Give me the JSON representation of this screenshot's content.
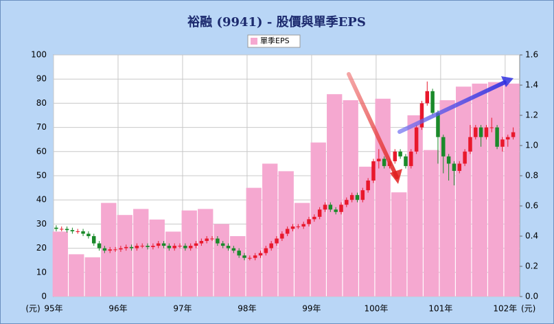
{
  "chart_data": {
    "type": "combo",
    "title": "裕融 (9941) - 股價與單季EPS",
    "y_label": "(元)",
    "y2_label": "(元)",
    "grid": true,
    "legend": "top",
    "xlim": [
      0,
      86.7
    ],
    "xticks": [
      {
        "value": 0,
        "label": "95年"
      },
      {
        "value": 12,
        "label": "96年"
      },
      {
        "value": 24,
        "label": "97年"
      },
      {
        "value": 36,
        "label": "98年"
      },
      {
        "value": 48,
        "label": "99年"
      },
      {
        "value": 60,
        "label": "100年"
      },
      {
        "value": 72,
        "label": "101年"
      },
      {
        "value": 84,
        "label": "102年"
      }
    ],
    "ylim": [
      0,
      100
    ],
    "yticks": [
      0,
      10,
      20,
      30,
      40,
      50,
      60,
      70,
      80,
      90,
      100
    ],
    "y2lim": [
      0,
      1.6
    ],
    "y2ticks": [
      {
        "value": 0,
        "label": "0.0"
      },
      0.2,
      0.4,
      0.6,
      0.8,
      {
        "value": 1,
        "label": "1.0"
      },
      1.2,
      1.4,
      1.6
    ],
    "series": [
      {
        "name": "單季EPS",
        "type": "bar",
        "axis": "y2",
        "color": "#f5a8d0",
        "x": [
          1.25,
          4.25,
          7.25,
          10.25,
          13.25,
          16.25,
          19.25,
          22.25,
          25.25,
          28.25,
          31.25,
          34.25,
          37.25,
          40.25,
          43.25,
          46.25,
          49.25,
          52.25,
          55.25,
          58.25,
          61.25,
          64.25,
          67.25,
          70.25,
          73.25,
          76.25,
          79.25,
          82.25,
          85.25
        ],
        "values": [
          0.43,
          0.28,
          0.26,
          0.62,
          0.54,
          0.58,
          0.51,
          0.43,
          0.57,
          0.58,
          0.48,
          0.4,
          0.72,
          0.88,
          0.83,
          0.62,
          1.02,
          1.34,
          1.3,
          0.86,
          1.31,
          0.69,
          1.2,
          0.97,
          1.3,
          1.39,
          1.41,
          1.42,
          1.41
        ]
      },
      {
        "type": "candlestick",
        "up_color": "#e8182c",
        "down_color": "#1a8a2a",
        "x": [
          0.5,
          1.5,
          2.5,
          3.5,
          4.5,
          5.5,
          6.5,
          7.5,
          8.5,
          9.5,
          10.5,
          11.5,
          12.5,
          13.5,
          14.5,
          15.5,
          16.5,
          17.5,
          18.5,
          19.5,
          20.5,
          21.5,
          22.5,
          23.5,
          24.5,
          25.5,
          26.5,
          27.5,
          28.5,
          29.5,
          30.5,
          31.5,
          32.5,
          33.5,
          34.5,
          35.5,
          36.5,
          37.5,
          38.5,
          39.5,
          40.5,
          41.5,
          42.5,
          43.5,
          44.5,
          45.5,
          46.5,
          47.5,
          48.5,
          49.5,
          50.5,
          51.5,
          52.5,
          53.5,
          54.5,
          55.5,
          56.5,
          57.5,
          58.5,
          59.5,
          60.5,
          61.5,
          62.5,
          63.5,
          64.5,
          65.5,
          66.5,
          67.5,
          68.5,
          69.5,
          70.5,
          71.5,
          72.5,
          73.5,
          74.5,
          75.5,
          76.5,
          77.5,
          78.5,
          79.5,
          80.5,
          81.5,
          82.5,
          83.5,
          84.5,
          85.5
        ],
        "open": [
          28.5,
          28,
          28,
          27.5,
          27,
          27,
          26,
          25,
          22,
          20,
          19,
          19.5,
          19.5,
          20,
          20.5,
          20,
          21,
          21,
          20.5,
          21,
          22,
          21,
          20,
          21,
          21,
          20,
          21,
          22,
          23,
          24,
          24,
          22,
          21,
          20,
          19,
          17,
          16,
          16,
          17,
          18,
          20,
          22,
          24,
          26,
          28,
          29,
          29,
          30,
          32,
          33,
          36,
          38,
          36,
          35,
          38,
          40,
          42,
          40,
          44,
          48,
          56,
          57,
          54,
          56,
          60,
          58,
          54,
          60,
          70,
          80,
          85,
          76,
          66,
          58,
          55,
          52,
          55,
          60,
          66,
          70,
          66,
          70,
          70,
          62,
          65,
          66
        ],
        "high": [
          29.5,
          29,
          29,
          28.5,
          28,
          28,
          27,
          26,
          23,
          21,
          20.5,
          20.5,
          21,
          21.5,
          21.5,
          22,
          22,
          22,
          22,
          23,
          23,
          22,
          22,
          22,
          22,
          22,
          23,
          24,
          25,
          25,
          25,
          23,
          22,
          21,
          20,
          18,
          17,
          18,
          19,
          21,
          23,
          25,
          27,
          29,
          30,
          30,
          31,
          33,
          34,
          37,
          39,
          39,
          37,
          39,
          41,
          43,
          43,
          45,
          49,
          57,
          61,
          58,
          57,
          61,
          61,
          59,
          61,
          71,
          81,
          89,
          86,
          77,
          67,
          59,
          56,
          56,
          61,
          71,
          71,
          71,
          71,
          74,
          71,
          66,
          67,
          70
        ],
        "low": [
          27,
          27,
          26.5,
          26,
          26,
          25,
          24,
          21,
          19,
          18,
          18,
          18.5,
          18.5,
          19,
          19,
          19,
          20,
          19.5,
          19.5,
          20,
          20,
          19,
          19,
          20,
          19,
          19,
          20,
          21,
          22,
          23,
          21,
          20,
          19,
          18,
          16,
          15,
          15,
          15,
          16,
          17,
          19,
          21,
          23,
          25,
          27,
          28,
          28,
          29,
          31,
          32,
          35,
          35,
          34,
          34,
          37,
          39,
          39,
          39,
          43,
          47,
          53,
          53,
          53,
          55,
          57,
          53,
          53,
          59,
          69,
          79,
          75,
          55,
          51,
          48,
          46,
          51,
          54,
          59,
          65,
          62,
          65,
          68,
          61,
          60,
          62,
          65
        ],
        "close": [
          28,
          28,
          27.5,
          27,
          27,
          26,
          25,
          22,
          20,
          19,
          19.5,
          19.5,
          20,
          20.5,
          20,
          21,
          21,
          20.5,
          21,
          22,
          21,
          20,
          21,
          21,
          20,
          21,
          22,
          23,
          24,
          24,
          22,
          21,
          20,
          19,
          17,
          16,
          16,
          17,
          18,
          20,
          22,
          24,
          26,
          28,
          29,
          29,
          30,
          32,
          33,
          36,
          38,
          36,
          35,
          38,
          40,
          42,
          40,
          44,
          48,
          56,
          57,
          54,
          56,
          60,
          58,
          54,
          60,
          70,
          80,
          85,
          76,
          66,
          58,
          55,
          52,
          55,
          60,
          66,
          70,
          66,
          70,
          70,
          62,
          65,
          66,
          68
        ]
      }
    ]
  }
}
